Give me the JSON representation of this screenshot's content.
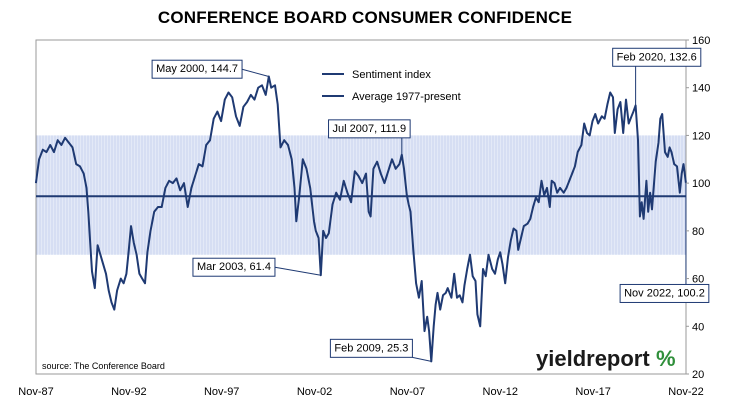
{
  "chart_data": {
    "type": "line",
    "title": "CONFERENCE BOARD CONSUMER CONFIDENCE",
    "ylim": [
      20,
      160
    ],
    "yticks": [
      20,
      40,
      60,
      80,
      100,
      120,
      140,
      160
    ],
    "y_axis_side": "right",
    "xtick_labels": [
      "Nov-87",
      "Nov-92",
      "Nov-97",
      "Nov-02",
      "Nov-07",
      "Nov-12",
      "Nov-17",
      "Nov-22"
    ],
    "xtick_years": [
      1987.833,
      1992.833,
      1997.833,
      2002.833,
      2007.833,
      2012.833,
      2017.833,
      2022.833
    ],
    "xlim": [
      1987.833,
      2022.833
    ],
    "band": [
      70,
      120
    ],
    "legend_position": "top-center",
    "series": [
      {
        "name": "Sentiment index",
        "color": "#1f3a73",
        "points": [
          [
            1987.83,
            100
          ],
          [
            1988.0,
            110
          ],
          [
            1988.2,
            114
          ],
          [
            1988.4,
            113
          ],
          [
            1988.6,
            116
          ],
          [
            1988.8,
            113
          ],
          [
            1989.0,
            118
          ],
          [
            1989.2,
            116
          ],
          [
            1989.4,
            119
          ],
          [
            1989.6,
            117
          ],
          [
            1989.8,
            115
          ],
          [
            1990.0,
            108
          ],
          [
            1990.2,
            107
          ],
          [
            1990.4,
            104
          ],
          [
            1990.55,
            98
          ],
          [
            1990.65,
            88
          ],
          [
            1990.75,
            75
          ],
          [
            1990.85,
            63
          ],
          [
            1991.0,
            56
          ],
          [
            1991.15,
            74
          ],
          [
            1991.3,
            70
          ],
          [
            1991.45,
            66
          ],
          [
            1991.6,
            62
          ],
          [
            1991.75,
            55
          ],
          [
            1991.9,
            50
          ],
          [
            1992.05,
            47
          ],
          [
            1992.2,
            55
          ],
          [
            1992.4,
            60
          ],
          [
            1992.55,
            58
          ],
          [
            1992.7,
            62
          ],
          [
            1992.83,
            72
          ],
          [
            1992.95,
            82
          ],
          [
            1993.1,
            75
          ],
          [
            1993.25,
            70
          ],
          [
            1993.4,
            62
          ],
          [
            1993.55,
            60
          ],
          [
            1993.7,
            58
          ],
          [
            1993.83,
            71
          ],
          [
            1994.0,
            80
          ],
          [
            1994.2,
            88
          ],
          [
            1994.4,
            90
          ],
          [
            1994.6,
            90
          ],
          [
            1994.8,
            98
          ],
          [
            1995.0,
            101
          ],
          [
            1995.2,
            100
          ],
          [
            1995.4,
            102
          ],
          [
            1995.6,
            97
          ],
          [
            1995.8,
            100
          ],
          [
            1996.0,
            90
          ],
          [
            1996.2,
            98
          ],
          [
            1996.4,
            103
          ],
          [
            1996.6,
            108
          ],
          [
            1996.8,
            107
          ],
          [
            1997.0,
            116
          ],
          [
            1997.2,
            118
          ],
          [
            1997.4,
            127
          ],
          [
            1997.6,
            130
          ],
          [
            1997.8,
            126
          ],
          [
            1998.0,
            135
          ],
          [
            1998.2,
            138
          ],
          [
            1998.4,
            136
          ],
          [
            1998.6,
            128
          ],
          [
            1998.8,
            124
          ],
          [
            1999.0,
            132
          ],
          [
            1999.2,
            134
          ],
          [
            1999.4,
            137
          ],
          [
            1999.6,
            135
          ],
          [
            1999.8,
            140
          ],
          [
            2000.0,
            141
          ],
          [
            2000.2,
            137
          ],
          [
            2000.37,
            144.7
          ],
          [
            2000.5,
            140
          ],
          [
            2000.7,
            141
          ],
          [
            2000.85,
            133
          ],
          [
            2001.0,
            115
          ],
          [
            2001.2,
            118
          ],
          [
            2001.4,
            116
          ],
          [
            2001.6,
            110
          ],
          [
            2001.75,
            98
          ],
          [
            2001.85,
            84
          ],
          [
            2002.0,
            94
          ],
          [
            2002.2,
            110
          ],
          [
            2002.4,
            106
          ],
          [
            2002.6,
            98
          ],
          [
            2002.8,
            84
          ],
          [
            2002.9,
            80
          ],
          [
            2003.05,
            77
          ],
          [
            2003.17,
            61.4
          ],
          [
            2003.3,
            80
          ],
          [
            2003.45,
            77
          ],
          [
            2003.6,
            79
          ],
          [
            2003.8,
            91
          ],
          [
            2004.0,
            96
          ],
          [
            2004.2,
            93
          ],
          [
            2004.4,
            101
          ],
          [
            2004.6,
            96
          ],
          [
            2004.8,
            92
          ],
          [
            2005.0,
            105
          ],
          [
            2005.2,
            103
          ],
          [
            2005.4,
            100
          ],
          [
            2005.6,
            104
          ],
          [
            2005.75,
            88
          ],
          [
            2005.85,
            86
          ],
          [
            2006.0,
            106
          ],
          [
            2006.2,
            109
          ],
          [
            2006.4,
            104
          ],
          [
            2006.6,
            100
          ],
          [
            2006.8,
            105
          ],
          [
            2007.0,
            110
          ],
          [
            2007.2,
            106
          ],
          [
            2007.4,
            108
          ],
          [
            2007.53,
            111.9
          ],
          [
            2007.65,
            106
          ],
          [
            2007.8,
            95
          ],
          [
            2007.9,
            91
          ],
          [
            2008.0,
            88
          ],
          [
            2008.15,
            72
          ],
          [
            2008.3,
            58
          ],
          [
            2008.45,
            52
          ],
          [
            2008.6,
            59
          ],
          [
            2008.75,
            38
          ],
          [
            2008.9,
            44
          ],
          [
            2009.0,
            38
          ],
          [
            2009.12,
            25.3
          ],
          [
            2009.25,
            40
          ],
          [
            2009.35,
            49
          ],
          [
            2009.45,
            54
          ],
          [
            2009.6,
            47
          ],
          [
            2009.75,
            53
          ],
          [
            2009.9,
            54
          ],
          [
            2010.0,
            56
          ],
          [
            2010.2,
            52
          ],
          [
            2010.35,
            62
          ],
          [
            2010.5,
            52
          ],
          [
            2010.65,
            53
          ],
          [
            2010.8,
            50
          ],
          [
            2010.9,
            57
          ],
          [
            2011.05,
            64
          ],
          [
            2011.2,
            70
          ],
          [
            2011.35,
            61
          ],
          [
            2011.5,
            59
          ],
          [
            2011.6,
            45
          ],
          [
            2011.75,
            40
          ],
          [
            2011.9,
            64
          ],
          [
            2012.05,
            61
          ],
          [
            2012.2,
            70
          ],
          [
            2012.4,
            64
          ],
          [
            2012.55,
            62
          ],
          [
            2012.7,
            68
          ],
          [
            2012.83,
            71
          ],
          [
            2012.95,
            66
          ],
          [
            2013.1,
            58
          ],
          [
            2013.25,
            69
          ],
          [
            2013.4,
            76
          ],
          [
            2013.55,
            81
          ],
          [
            2013.7,
            80
          ],
          [
            2013.8,
            72
          ],
          [
            2013.95,
            77
          ],
          [
            2014.1,
            82
          ],
          [
            2014.3,
            83
          ],
          [
            2014.45,
            85
          ],
          [
            2014.6,
            90
          ],
          [
            2014.75,
            94
          ],
          [
            2014.9,
            92
          ],
          [
            2015.05,
            101
          ],
          [
            2015.2,
            95
          ],
          [
            2015.35,
            98
          ],
          [
            2015.5,
            90
          ],
          [
            2015.6,
            101
          ],
          [
            2015.75,
            100
          ],
          [
            2015.9,
            96
          ],
          [
            2016.05,
            98
          ],
          [
            2016.25,
            96
          ],
          [
            2016.4,
            98
          ],
          [
            2016.55,
            101
          ],
          [
            2016.7,
            104
          ],
          [
            2016.85,
            107
          ],
          [
            2017.0,
            113
          ],
          [
            2017.2,
            116
          ],
          [
            2017.35,
            125
          ],
          [
            2017.5,
            121
          ],
          [
            2017.65,
            120
          ],
          [
            2017.8,
            126
          ],
          [
            2017.95,
            129
          ],
          [
            2018.1,
            125
          ],
          [
            2018.3,
            128
          ],
          [
            2018.45,
            127
          ],
          [
            2018.6,
            133
          ],
          [
            2018.75,
            138
          ],
          [
            2018.9,
            136
          ],
          [
            2019.0,
            121
          ],
          [
            2019.15,
            131
          ],
          [
            2019.3,
            134
          ],
          [
            2019.45,
            121
          ],
          [
            2019.6,
            135
          ],
          [
            2019.75,
            125
          ],
          [
            2019.9,
            128
          ],
          [
            2020.0,
            130
          ],
          [
            2020.12,
            132.6
          ],
          [
            2020.25,
            118
          ],
          [
            2020.35,
            86
          ],
          [
            2020.45,
            92
          ],
          [
            2020.55,
            85
          ],
          [
            2020.7,
            101
          ],
          [
            2020.8,
            88
          ],
          [
            2020.9,
            96
          ],
          [
            2021.0,
            89
          ],
          [
            2021.2,
            109
          ],
          [
            2021.35,
            117
          ],
          [
            2021.45,
            127
          ],
          [
            2021.55,
            129
          ],
          [
            2021.7,
            113
          ],
          [
            2021.85,
            111
          ],
          [
            2021.95,
            115
          ],
          [
            2022.05,
            113
          ],
          [
            2022.2,
            108
          ],
          [
            2022.35,
            107
          ],
          [
            2022.5,
            96
          ],
          [
            2022.6,
            104
          ],
          [
            2022.7,
            108
          ],
          [
            2022.83,
            100.2
          ]
        ]
      },
      {
        "name": "Average 1977-present",
        "color": "#1f3a73",
        "value": 94.5
      }
    ],
    "annotations": [
      {
        "text": "May 2000, 144.7",
        "x": 2000.37,
        "y": 144.7,
        "label_x": 1994.3,
        "label_y": 146.5
      },
      {
        "text": "Jul 2007, 111.9",
        "x": 2007.53,
        "y": 111.9,
        "label_x": 2003.8,
        "label_y": 121.5
      },
      {
        "text": "Feb 2020, 132.6",
        "x": 2020.12,
        "y": 132.6,
        "label_x": 2019.1,
        "label_y": 151.5
      },
      {
        "text": "Mar 2003, 61.4",
        "x": 2003.17,
        "y": 61.4,
        "label_x": 1996.5,
        "label_y": 63.5
      },
      {
        "text": "Feb 2009, 25.3",
        "x": 2009.12,
        "y": 25.3,
        "label_x": 2003.9,
        "label_y": 29.5
      },
      {
        "text": "Nov 2022, 100.2",
        "x": 2022.83,
        "y": 100.2,
        "label_x": 2019.5,
        "label_y": 52.5
      }
    ],
    "source": "source: The Conference Board"
  },
  "logo": {
    "text": "yieldreport",
    "symbol": "%"
  }
}
